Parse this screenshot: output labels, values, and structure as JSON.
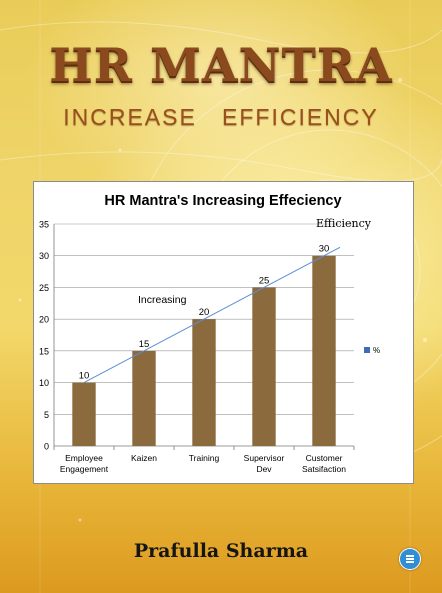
{
  "cover": {
    "title": "HR MANTRA",
    "subtitle": "INCREASE   EFFICIENCY",
    "author": "Prafulla Sharma",
    "badge_icon": "publisher-logo-icon",
    "colors": {
      "title": "#8a4a1d",
      "subtitle": "#9a4f1c",
      "bar": "#8b6b3d",
      "trend": "#5b8ed6",
      "legend": "#3f6db8"
    }
  },
  "chart_data": {
    "type": "bar",
    "title": "HR Mantra's Increasing Effeciency",
    "categories": [
      [
        "Employee",
        "Engagement"
      ],
      [
        "Kaizen"
      ],
      [
        "Training"
      ],
      [
        "Supervisor",
        "Dev"
      ],
      [
        "Customer",
        "Satsifaction"
      ]
    ],
    "series": [
      {
        "name": "%",
        "values": [
          10,
          15,
          20,
          25,
          30
        ]
      }
    ],
    "ylim": [
      0,
      35
    ],
    "yticks": [
      0,
      5,
      10,
      15,
      20,
      25,
      30,
      35
    ],
    "grid": true,
    "legend": "right",
    "annotations": {
      "trend_label": "Efficiency",
      "increasing_label": "Increasing"
    }
  }
}
